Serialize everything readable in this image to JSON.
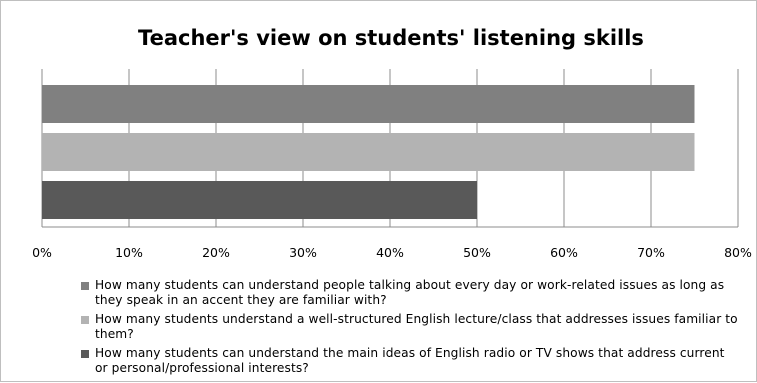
{
  "chart_data": {
    "type": "bar",
    "orientation": "horizontal",
    "title": "Teacher's view on students' listening skills",
    "xlabel": "",
    "ylabel": "",
    "xlim": [
      0,
      80
    ],
    "x_ticks": [
      "0%",
      "10%",
      "20%",
      "30%",
      "40%",
      "50%",
      "60%",
      "70%",
      "80%"
    ],
    "grid": true,
    "legend_position": "bottom",
    "series": [
      {
        "name": "How many students can understand people talking about every day or work-related issues as long as they speak in an accent they are familiar with?",
        "value": 75,
        "color": "#808080"
      },
      {
        "name": "How many students understand a well-structured English lecture/class that addresses issues familiar to them?",
        "value": 75,
        "color": "#b3b3b3"
      },
      {
        "name": "How many students can understand the main ideas of English radio or TV shows that address current or personal/professional interests?",
        "value": 50,
        "color": "#595959"
      }
    ]
  }
}
